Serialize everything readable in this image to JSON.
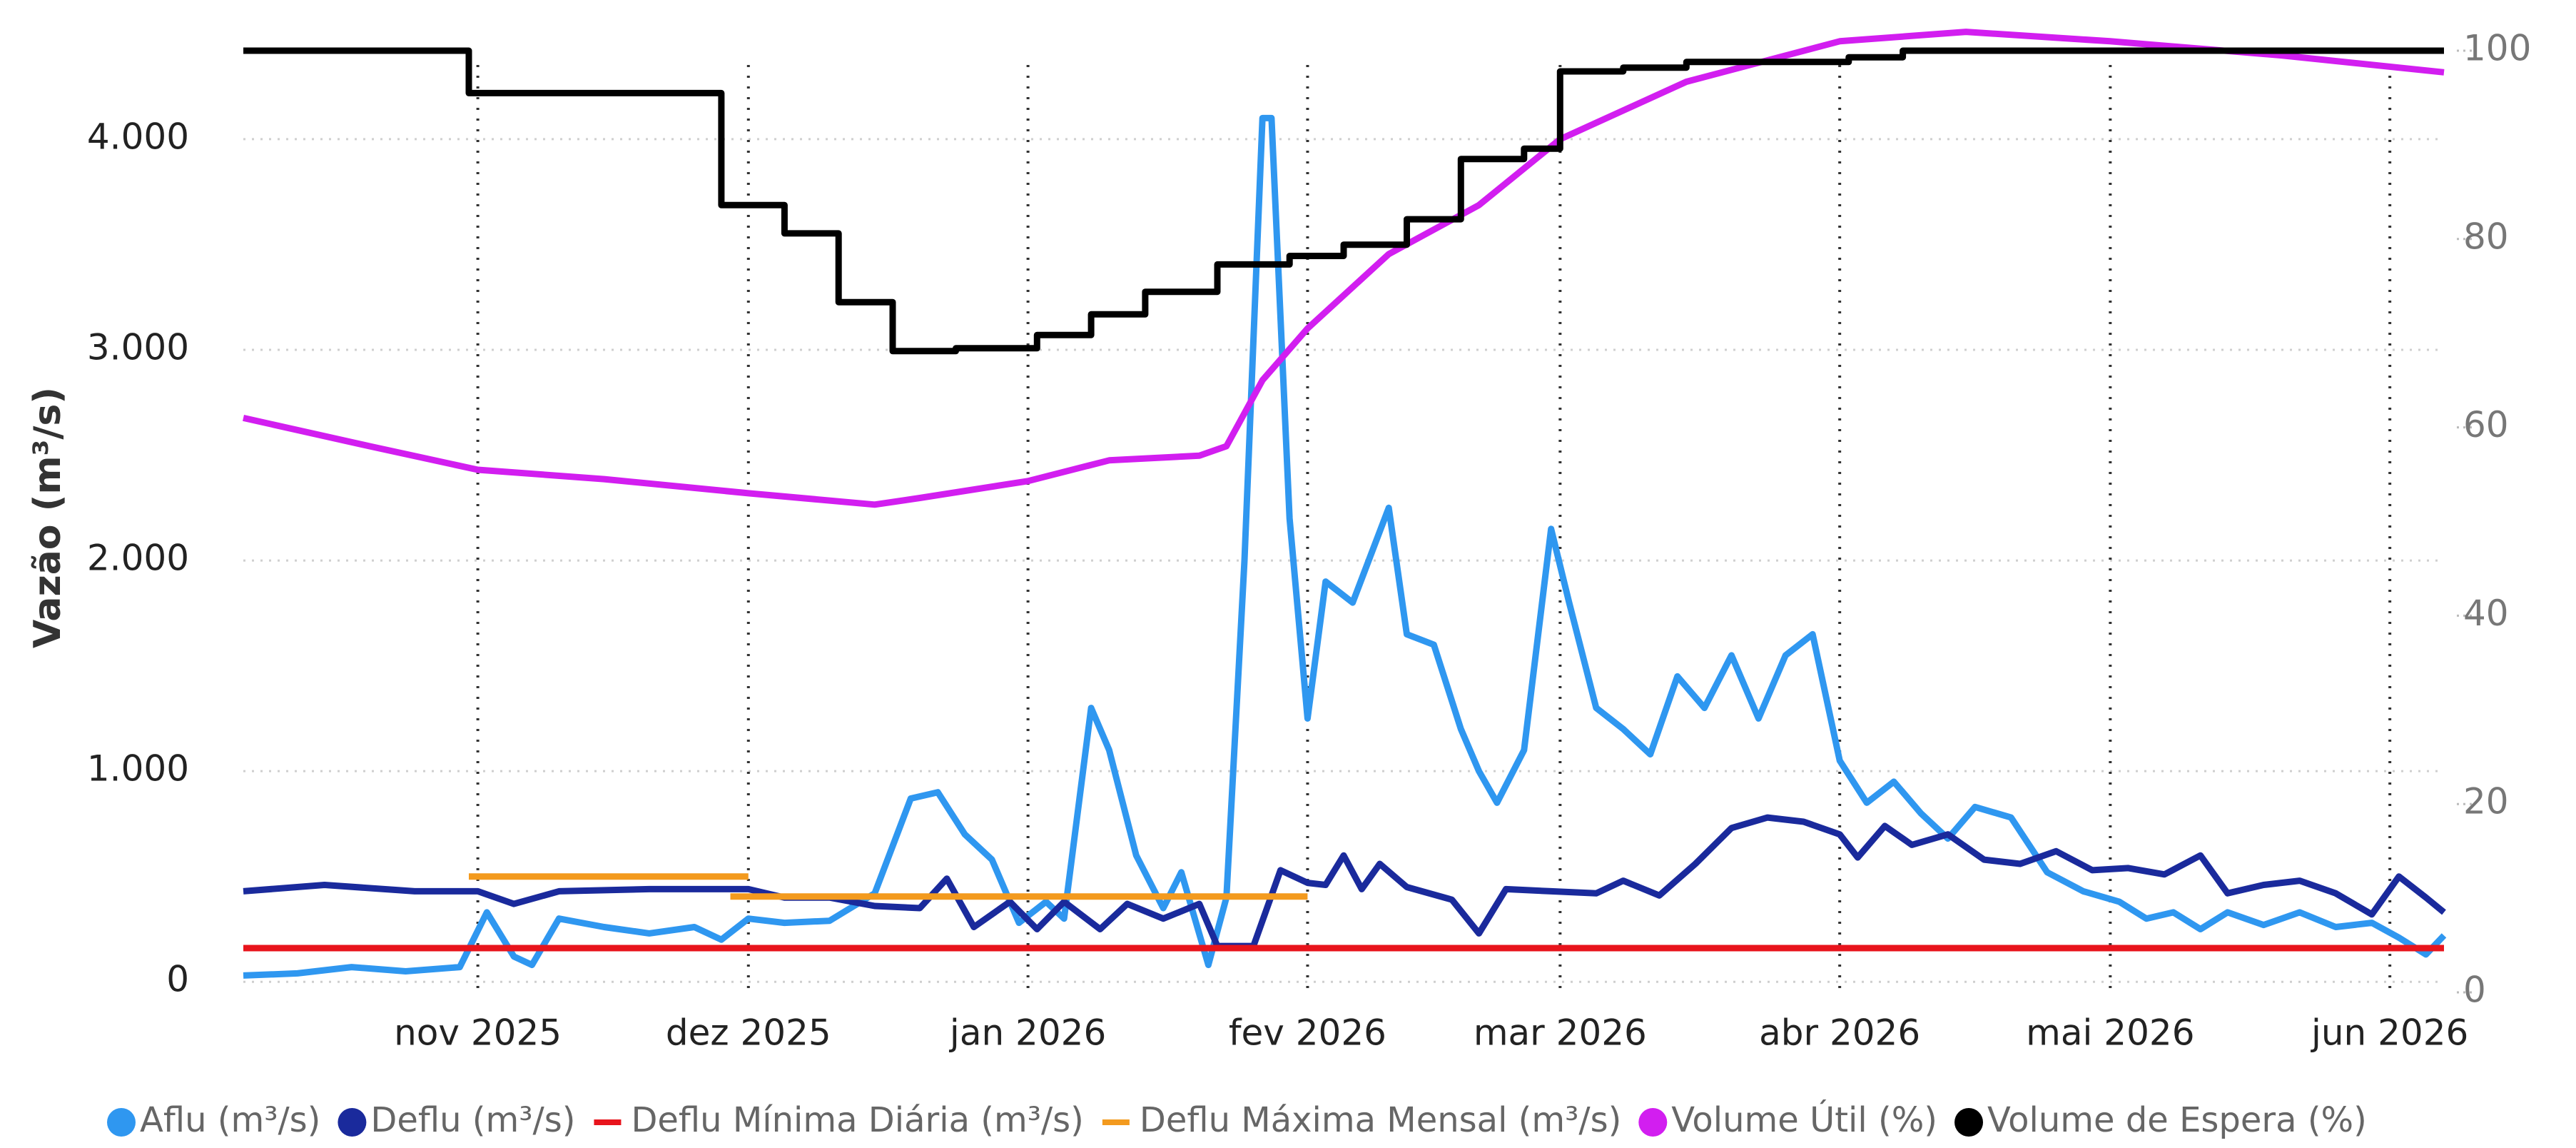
{
  "chart_data": {
    "type": "line",
    "y_label": "Vazão (m³/s)",
    "xlim": [
      "2025-10-06",
      "2026-06-07"
    ],
    "xticks": [
      {
        "value": "2025-11-01",
        "label": "nov 2025"
      },
      {
        "value": "2025-12-01",
        "label": "dez 2025"
      },
      {
        "value": "2026-01-01",
        "label": "jan 2026"
      },
      {
        "value": "2026-02-01",
        "label": "fev 2026"
      },
      {
        "value": "2026-03-01",
        "label": "mar 2026"
      },
      {
        "value": "2026-04-01",
        "label": "abr 2026"
      },
      {
        "value": "2026-05-01",
        "label": "mai 2026"
      },
      {
        "value": "2026-06-01",
        "label": "jun 2026"
      }
    ],
    "ylim": [
      -50,
      4420
    ],
    "yticks": [
      0,
      {
        "value": 1000,
        "label": "1.000"
      },
      {
        "value": 2000,
        "label": "2.000"
      },
      {
        "value": 3000,
        "label": "3.000"
      },
      {
        "value": 4000,
        "label": "4.000"
      }
    ],
    "y2lim": [
      0,
      100
    ],
    "y2ticks": [
      0,
      20,
      40,
      60,
      80,
      100
    ],
    "grid": true,
    "legend": "bottom",
    "series": [
      {
        "name": "Aflu (m³/s)",
        "color": "#2f97f0",
        "marker": "circle",
        "x": [
          "2025-10-06",
          "2025-10-12",
          "2025-10-18",
          "2025-10-24",
          "2025-10-30",
          "2025-11-02",
          "2025-11-05",
          "2025-11-07",
          "2025-11-10",
          "2025-11-15",
          "2025-11-20",
          "2025-11-25",
          "2025-11-28",
          "2025-12-01",
          "2025-12-05",
          "2025-12-10",
          "2025-12-15",
          "2025-12-19",
          "2025-12-22",
          "2025-12-25",
          "2025-12-28",
          "2025-12-31",
          "2026-01-03",
          "2026-01-05",
          "2026-01-08",
          "2026-01-10",
          "2026-01-13",
          "2026-01-16",
          "2026-01-18",
          "2026-01-21",
          "2026-01-23",
          "2026-01-25",
          "2026-01-27",
          "2026-01-28",
          "2026-01-30",
          "2026-02-01",
          "2026-02-03",
          "2026-02-06",
          "2026-02-10",
          "2026-02-12",
          "2026-02-15",
          "2026-02-18",
          "2026-02-20",
          "2026-02-22",
          "2026-02-25",
          "2026-02-28",
          "2026-03-02",
          "2026-03-05",
          "2026-03-08",
          "2026-03-11",
          "2026-03-14",
          "2026-03-17",
          "2026-03-20",
          "2026-03-23",
          "2026-03-26",
          "2026-03-29",
          "2026-04-01",
          "2026-04-04",
          "2026-04-07",
          "2026-04-10",
          "2026-04-13",
          "2026-04-16",
          "2026-04-20",
          "2026-04-24",
          "2026-04-28",
          "2026-05-02",
          "2026-05-05",
          "2026-05-08",
          "2026-05-11",
          "2026-05-14",
          "2026-05-18",
          "2026-05-22",
          "2026-05-26",
          "2026-05-30",
          "2026-06-02",
          "2026-06-05",
          "2026-06-07"
        ],
        "values": [
          30,
          40,
          70,
          50,
          70,
          330,
          120,
          80,
          300,
          260,
          230,
          260,
          200,
          300,
          280,
          290,
          420,
          870,
          900,
          700,
          580,
          280,
          380,
          300,
          1300,
          1100,
          600,
          350,
          520,
          80,
          400,
          2000,
          4100,
          4100,
          2200,
          1250,
          1900,
          1800,
          2250,
          1650,
          1600,
          1200,
          1000,
          850,
          1100,
          2150,
          1800,
          1300,
          1200,
          1080,
          1450,
          1300,
          1550,
          1250,
          1550,
          1650,
          1050,
          850,
          950,
          800,
          680,
          830,
          780,
          520,
          430,
          380,
          300,
          330,
          250,
          330,
          270,
          330,
          260,
          280,
          210,
          130,
          220
        ]
      },
      {
        "name": "Deflu (m³/s)",
        "color": "#1a2a9c",
        "marker": "circle",
        "x": [
          "2025-10-06",
          "2025-10-15",
          "2025-10-25",
          "2025-11-01",
          "2025-11-05",
          "2025-11-10",
          "2025-11-20",
          "2025-12-01",
          "2025-12-05",
          "2025-12-10",
          "2025-12-15",
          "2025-12-20",
          "2025-12-23",
          "2025-12-26",
          "2025-12-30",
          "2026-01-02",
          "2026-01-05",
          "2026-01-09",
          "2026-01-12",
          "2026-01-16",
          "2026-01-20",
          "2026-01-22",
          "2026-01-26",
          "2026-01-29",
          "2026-02-01",
          "2026-02-03",
          "2026-02-05",
          "2026-02-07",
          "2026-02-09",
          "2026-02-12",
          "2026-02-17",
          "2026-02-20",
          "2026-02-23",
          "2026-02-28",
          "2026-03-05",
          "2026-03-08",
          "2026-03-12",
          "2026-03-16",
          "2026-03-20",
          "2026-03-24",
          "2026-03-28",
          "2026-04-01",
          "2026-04-03",
          "2026-04-06",
          "2026-04-09",
          "2026-04-13",
          "2026-04-17",
          "2026-04-21",
          "2026-04-25",
          "2026-04-29",
          "2026-05-03",
          "2026-05-07",
          "2026-05-11",
          "2026-05-14",
          "2026-05-18",
          "2026-05-22",
          "2026-05-26",
          "2026-05-30",
          "2026-06-02",
          "2026-06-05",
          "2026-06-07"
        ],
        "values": [
          430,
          460,
          430,
          430,
          370,
          430,
          440,
          440,
          400,
          400,
          360,
          350,
          490,
          260,
          380,
          250,
          380,
          250,
          370,
          300,
          370,
          170,
          170,
          530,
          470,
          460,
          600,
          440,
          560,
          450,
          390,
          230,
          440,
          430,
          420,
          480,
          410,
          560,
          730,
          780,
          760,
          700,
          590,
          740,
          650,
          700,
          580,
          560,
          620,
          530,
          540,
          510,
          600,
          420,
          460,
          480,
          420,
          320,
          500,
          400,
          330
        ]
      },
      {
        "name": "Deflu Mínima Diária (m³/s)",
        "color": "#e8141c",
        "marker": "line",
        "x": [
          "2025-10-06",
          "2026-06-07"
        ],
        "values": [
          160,
          160
        ]
      },
      {
        "name": "Deflu Máxima Mensal (m³/s)",
        "color": "#f39a1e",
        "marker": "line",
        "x": [
          "2025-10-31",
          "2025-12-01",
          "2025-11-30",
          "2025-11-29",
          "2026-02-01"
        ],
        "values": [
          500,
          500,
          null,
          405,
          405
        ]
      },
      {
        "name": "Volume Útil (%)",
        "color": "#d21ef0",
        "marker": "circle",
        "axis": "y2",
        "x": [
          "2025-10-06",
          "2025-10-20",
          "2025-11-01",
          "2025-11-15",
          "2025-12-01",
          "2025-12-15",
          "2025-12-20",
          "2026-01-01",
          "2026-01-10",
          "2026-01-20",
          "2026-01-23",
          "2026-01-27",
          "2026-02-01",
          "2026-02-10",
          "2026-02-20",
          "2026-03-01",
          "2026-03-15",
          "2026-04-01",
          "2026-04-15",
          "2026-05-01",
          "2026-05-20",
          "2026-06-07"
        ],
        "values": [
          61,
          58,
          55.5,
          54.5,
          53,
          51.8,
          52.5,
          54.3,
          56.5,
          57,
          58,
          65,
          70.5,
          78.4,
          83.6,
          90.6,
          96.7,
          101,
          102,
          101,
          99.5,
          97.7
        ]
      },
      {
        "name": "Volume de Espera (%)",
        "color": "#000000",
        "marker": "circle",
        "axis": "y2",
        "x": [
          "2025-10-06",
          "2025-10-31",
          "2025-10-31",
          "2025-11-28",
          "2025-11-28",
          "2025-12-05",
          "2025-12-05",
          "2025-12-11",
          "2025-12-11",
          "2025-12-17",
          "2025-12-17",
          "2025-12-24",
          "2025-12-24",
          "2026-01-02",
          "2026-01-02",
          "2026-01-08",
          "2026-01-08",
          "2026-01-14",
          "2026-01-14",
          "2026-01-22",
          "2026-01-22",
          "2026-01-30",
          "2026-01-30",
          "2026-02-05",
          "2026-02-05",
          "2026-02-12",
          "2026-02-12",
          "2026-02-18",
          "2026-02-18",
          "2026-02-25",
          "2026-02-25",
          "2026-03-01",
          "2026-03-01",
          "2026-03-08",
          "2026-03-08",
          "2026-03-15",
          "2026-03-15",
          "2026-04-02",
          "2026-04-02",
          "2026-04-08",
          "2026-04-08",
          "2026-06-07"
        ],
        "values": [
          100,
          100,
          95.5,
          95.5,
          83.6,
          83.6,
          80.6,
          80.6,
          73.3,
          73.3,
          68.1,
          68.1,
          68.4,
          68.4,
          69.8,
          69.8,
          72,
          72,
          74.4,
          74.4,
          77.3,
          77.3,
          78.2,
          78.2,
          79.4,
          79.4,
          82.1,
          82.1,
          88.5,
          88.5,
          89.6,
          89.6,
          97.8,
          97.8,
          98.2,
          98.2,
          98.8,
          98.8,
          99.3,
          99.3,
          100,
          100
        ]
      }
    ]
  }
}
